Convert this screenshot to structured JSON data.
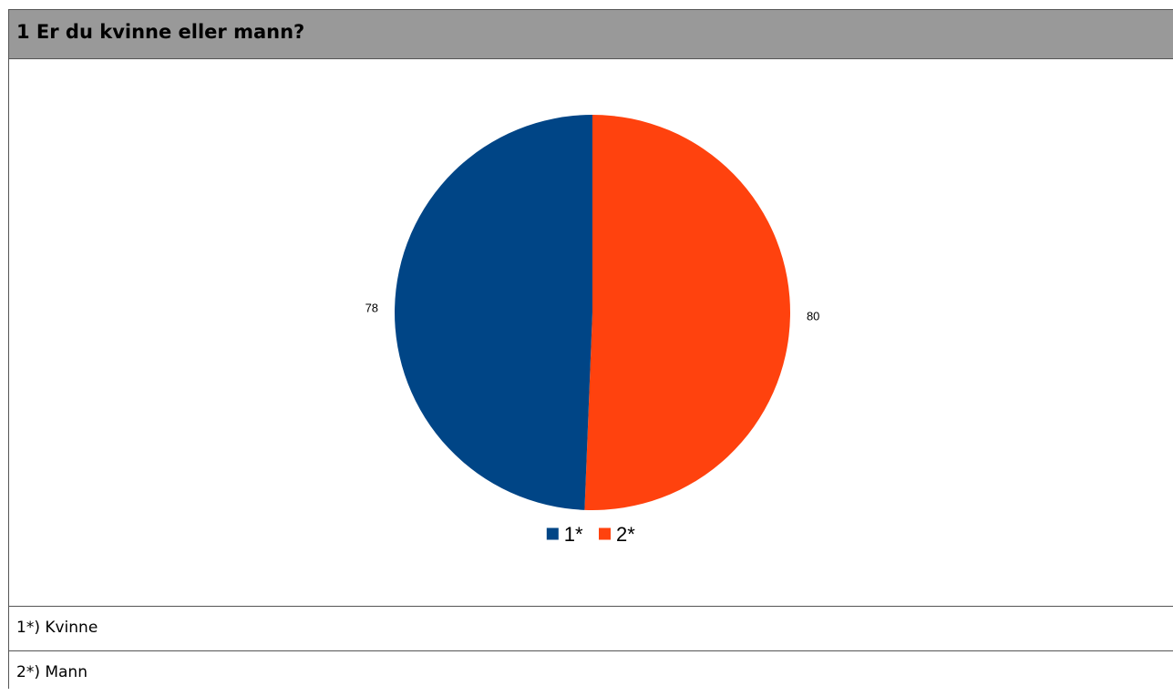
{
  "header": {
    "title": "1 Er du kvinne eller mann?"
  },
  "chart_data": {
    "type": "pie",
    "title": "",
    "categories": [
      "1*",
      "2*"
    ],
    "values": [
      78,
      80
    ],
    "colors": [
      "#004586",
      "#ff420e"
    ],
    "data_labels": [
      "78",
      "80"
    ],
    "legend": {
      "placement": "bottom",
      "entries": [
        "1*",
        "2*"
      ]
    }
  },
  "footnotes": [
    {
      "text": "1*) Kvinne"
    },
    {
      "text": "2*) Mann"
    }
  ]
}
